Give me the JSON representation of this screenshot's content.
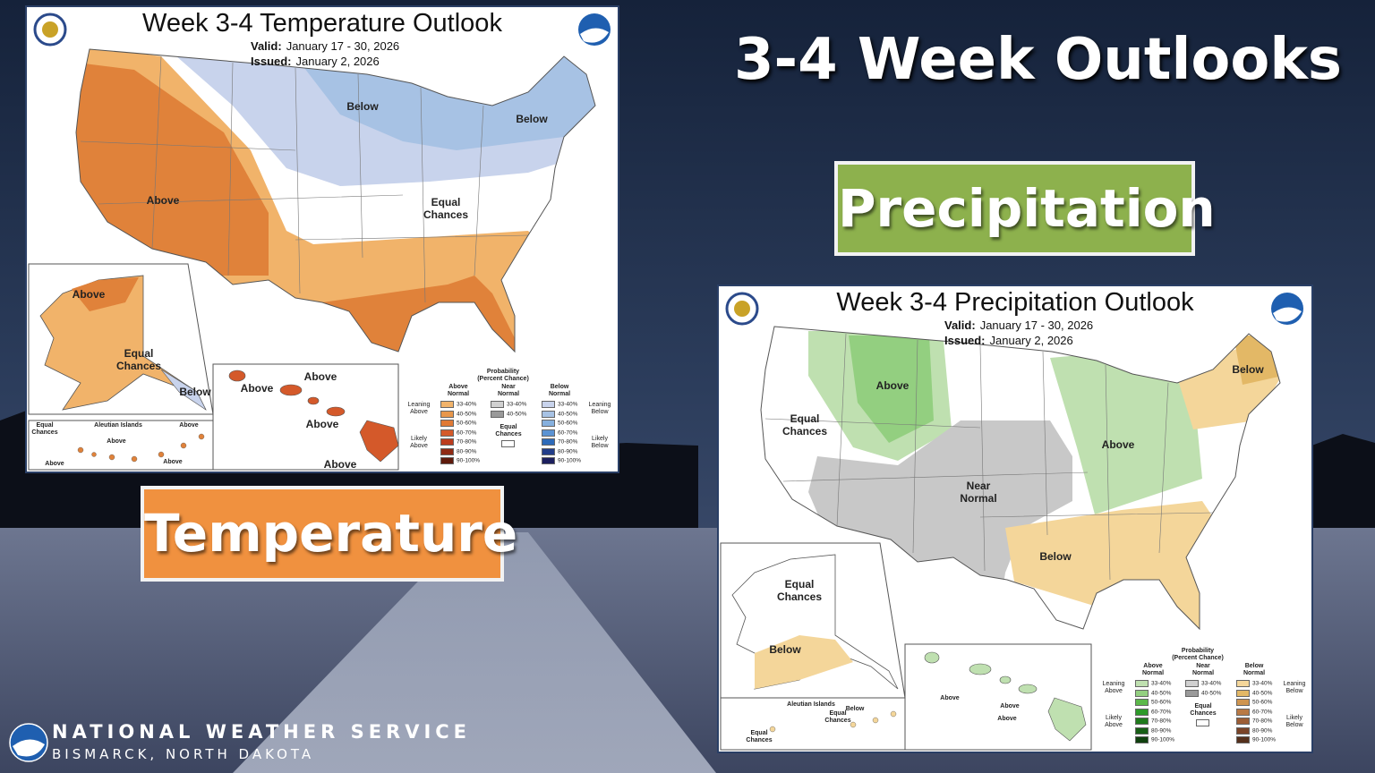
{
  "slide": {
    "title": "3-4 Week Outlooks",
    "temperature_label": "Temperature",
    "precipitation_label": "Precipitation",
    "footer": {
      "organization": "NATIONAL WEATHER SERVICE",
      "location": "BISMARCK, NORTH DAKOTA"
    }
  },
  "temperature_map": {
    "title": "Week 3-4 Temperature Outlook",
    "valid_label": "Valid:",
    "valid": "January 17 - 30, 2026",
    "issued_label": "Issued:",
    "issued": "January 2, 2026",
    "labels": [
      "Below",
      "Below",
      "Above",
      "Equal Chances",
      "Above",
      "Equal Chances",
      "Below",
      "Above",
      "Above",
      "Above",
      "Above",
      "Equal Chances",
      "Aleutian Islands",
      "Above",
      "Above",
      "Above",
      "Above"
    ],
    "legend": {
      "title": "Probability (Percent Chance)",
      "columns": [
        {
          "name": "Above Normal",
          "ranges": [
            "33-40%",
            "40-50%",
            "50-60%",
            "60-70%",
            "70-80%",
            "80-90%",
            "90-100%"
          ],
          "colors": [
            "#f1b36a",
            "#e8974b",
            "#e07a36",
            "#d4592a",
            "#bb3c1e",
            "#8f2a14",
            "#5e1a0c"
          ]
        },
        {
          "name": "Near Normal",
          "ranges": [
            "33-40%",
            "40-50%"
          ],
          "colors": [
            "#d0d0d0",
            "#9a9a9a"
          ]
        },
        {
          "name": "Below Normal",
          "ranges": [
            "33-40%",
            "40-50%",
            "50-60%",
            "60-70%",
            "70-80%",
            "80-90%",
            "90-100%"
          ],
          "colors": [
            "#c8d3ec",
            "#a7c2e4",
            "#86b0de",
            "#5b93d3",
            "#2e6bb9",
            "#223d89",
            "#1c1f5e"
          ]
        }
      ],
      "equal_chances": "Equal Chances",
      "leaning_above": "Leaning Above",
      "likely_above": "Likely Above",
      "leaning_below": "Leaning Below",
      "likely_below": "Likely Below"
    }
  },
  "precipitation_map": {
    "title": "Week 3-4 Precipitation Outlook",
    "valid_label": "Valid:",
    "valid": "January 17 - 30, 2026",
    "issued_label": "Issued:",
    "issued": "January 2, 2026",
    "labels": [
      "Above",
      "Equal Chances",
      "Near Normal",
      "Above",
      "Below",
      "Below",
      "Equal Chances",
      "Below",
      "Aleutian Islands",
      "Equal Chances",
      "Below",
      "Equal Chances",
      "Above",
      "Above",
      "Above"
    ],
    "legend": {
      "title": "Probability (Percent Chance)",
      "columns": [
        {
          "name": "Above Normal",
          "ranges": [
            "33-40%",
            "40-50%",
            "50-60%",
            "60-70%",
            "70-80%",
            "80-90%",
            "90-100%"
          ],
          "colors": [
            "#bfe0b0",
            "#93cf80",
            "#5cb84a",
            "#2e9a2a",
            "#1f7a1c",
            "#185e16",
            "#10400e"
          ]
        },
        {
          "name": "Near Normal",
          "ranges": [
            "33-40%",
            "40-50%"
          ],
          "colors": [
            "#d0d0d0",
            "#9a9a9a"
          ]
        },
        {
          "name": "Below Normal",
          "ranges": [
            "33-40%",
            "40-50%",
            "50-60%",
            "60-70%",
            "70-80%",
            "80-90%",
            "90-100%"
          ],
          "colors": [
            "#f4d69a",
            "#e3b866",
            "#cf9550",
            "#b97a45",
            "#9c5d35",
            "#7a4428",
            "#55301c"
          ]
        }
      ],
      "equal_chances": "Equal Chances",
      "leaning_above": "Leaning Above",
      "likely_above": "Likely Above",
      "leaning_below": "Leaning Below",
      "likely_below": "Likely Below"
    }
  }
}
